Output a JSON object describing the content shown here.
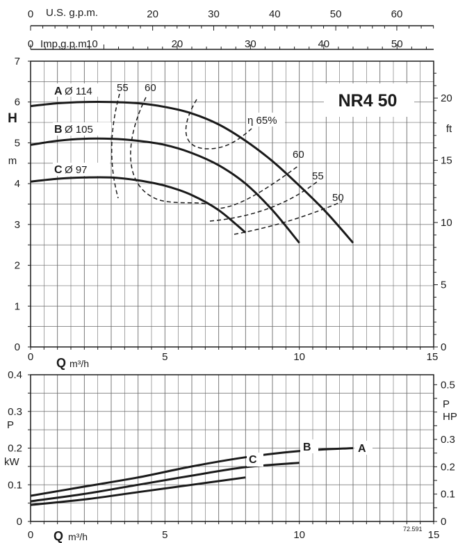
{
  "chart_data": [
    {
      "type": "line",
      "panel": "head",
      "title": "NR4 50",
      "top_axis_1": {
        "label": "U.S. g.p.m.",
        "zero": "0",
        "ticks": [
          "10",
          "20",
          "30",
          "40",
          "50",
          "60"
        ],
        "tick_values": [
          10,
          20,
          30,
          40,
          50,
          60
        ],
        "xlim": [
          0,
          66.04
        ]
      },
      "top_axis_2": {
        "label": "Imp.g.p.m.",
        "zero": "0",
        "ticks": [
          "10",
          "20",
          "30",
          "40",
          "50"
        ],
        "tick_values": [
          10,
          20,
          30,
          40,
          50
        ],
        "xlim": [
          0,
          55
        ]
      },
      "x": {
        "symbol": "Q",
        "unit": "m³/h",
        "ticks": [
          "0",
          "5",
          "10",
          "15"
        ],
        "tick_values": [
          0,
          5,
          10,
          15
        ],
        "xlim": [
          0,
          15
        ]
      },
      "y_left": {
        "symbol": "H",
        "unit": "m",
        "ticks": [
          "0",
          "1",
          "2",
          "3",
          "4",
          "5",
          "6",
          "7"
        ],
        "tick_values": [
          0,
          1,
          2,
          3,
          4,
          5,
          6,
          7
        ],
        "ylim": [
          0,
          7
        ]
      },
      "y_right": {
        "unit": "ft",
        "ticks": [
          "0",
          "5",
          "10",
          "15",
          "20"
        ],
        "tick_values": [
          0,
          5,
          10,
          15,
          20
        ]
      },
      "series": [
        {
          "name": "A",
          "diameter": "Ø 114",
          "x": [
            0,
            1,
            2,
            3,
            4,
            5,
            6,
            7,
            8,
            9,
            10,
            11,
            12
          ],
          "y": [
            5.9,
            5.97,
            6.0,
            6.0,
            5.97,
            5.88,
            5.72,
            5.45,
            5.05,
            4.55,
            3.95,
            3.3,
            2.55
          ]
        },
        {
          "name": "B",
          "diameter": "Ø 105",
          "x": [
            0,
            1,
            2,
            3,
            4,
            5,
            6,
            7,
            8,
            9,
            10
          ],
          "y": [
            4.95,
            5.05,
            5.1,
            5.1,
            5.05,
            4.95,
            4.75,
            4.45,
            4.0,
            3.35,
            2.55
          ]
        },
        {
          "name": "C",
          "diameter": "Ø 97",
          "x": [
            0,
            1,
            2,
            3,
            4,
            5,
            6,
            7,
            8
          ],
          "y": [
            4.05,
            4.12,
            4.15,
            4.15,
            4.08,
            3.95,
            3.72,
            3.35,
            2.8
          ]
        }
      ],
      "efficiency_labels": [
        "55",
        "60",
        "η 65%",
        "60",
        "55",
        "50"
      ]
    },
    {
      "type": "line",
      "panel": "power",
      "x": {
        "symbol": "Q",
        "unit": "m³/h",
        "ticks": [
          "0",
          "5",
          "10",
          "15"
        ],
        "tick_values": [
          0,
          5,
          10,
          15
        ],
        "xlim": [
          0,
          15
        ]
      },
      "y_left": {
        "symbol": "P",
        "unit": "kW",
        "ticks": [
          "0",
          "0.1",
          "0.2",
          "0.3",
          "0.4"
        ],
        "tick_values": [
          0,
          0.1,
          0.2,
          0.3,
          0.4
        ],
        "ylim": [
          0,
          0.4
        ]
      },
      "y_right": {
        "symbol": "P",
        "unit": "HP",
        "ticks": [
          "0",
          "0.1",
          "0.2",
          "0.3",
          "0.5"
        ],
        "tick_values": [
          0,
          0.1,
          0.2,
          0.3,
          0.5
        ]
      },
      "series": [
        {
          "name": "A",
          "x": [
            0,
            2,
            4,
            6,
            8,
            10,
            12
          ],
          "y": [
            0.07,
            0.095,
            0.12,
            0.15,
            0.175,
            0.192,
            0.2
          ]
        },
        {
          "name": "B",
          "x": [
            0,
            2,
            4,
            6,
            8,
            10
          ],
          "y": [
            0.055,
            0.075,
            0.1,
            0.125,
            0.148,
            0.16
          ]
        },
        {
          "name": "C",
          "x": [
            0,
            2,
            4,
            6,
            8
          ],
          "y": [
            0.045,
            0.06,
            0.08,
            0.1,
            0.12
          ]
        }
      ],
      "code": "72.591"
    }
  ]
}
